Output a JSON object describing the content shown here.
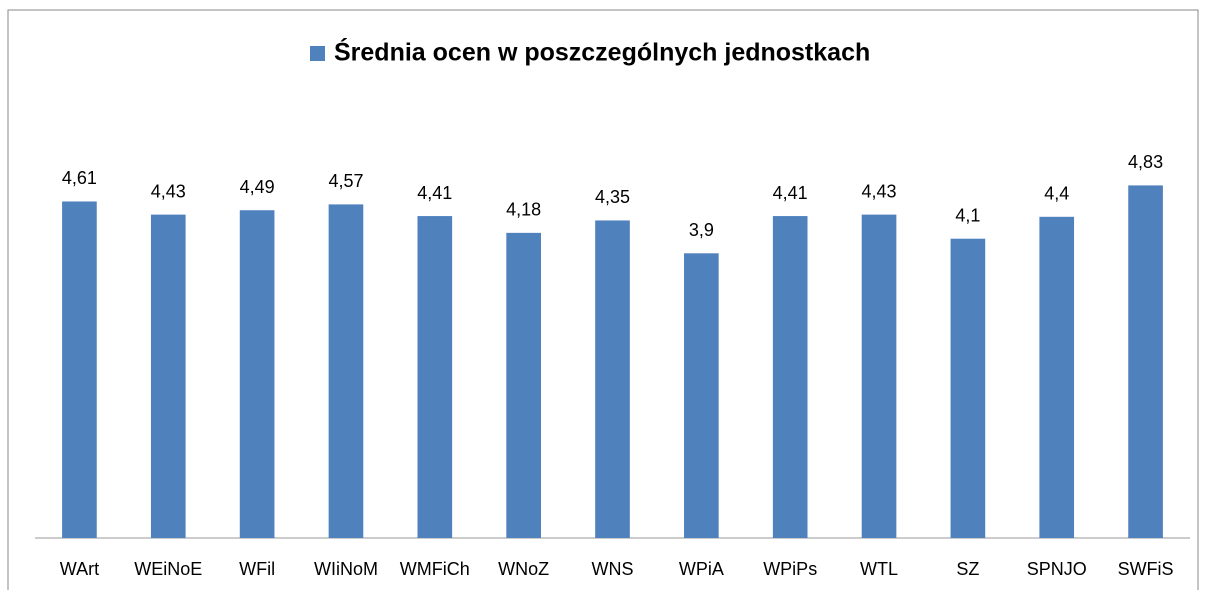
{
  "chart_data": {
    "type": "bar",
    "categories": [
      "WArt",
      "WEiNoE",
      "WFil",
      "WIiNoM",
      "WMFiCh",
      "WNoZ",
      "WNS",
      "WPiA",
      "WPiPs",
      "WTL",
      "SZ",
      "SPNJO",
      "SWFiS"
    ],
    "series": [
      {
        "name": "Średnia ocen w poszczególnych jednostkach",
        "color": "#4f81bd",
        "values": [
          4.61,
          4.43,
          4.49,
          4.57,
          4.41,
          4.18,
          4.35,
          3.9,
          4.41,
          4.43,
          4.1,
          4.4,
          4.83
        ],
        "value_labels": [
          "4,61",
          "4,43",
          "4,49",
          "4,57",
          "4,41",
          "4,18",
          "4,35",
          "3,9",
          "4,41",
          "4,43",
          "4,1",
          "4,4",
          "4,83"
        ]
      }
    ],
    "ylim": [
      0,
      6
    ],
    "legend": "top"
  }
}
